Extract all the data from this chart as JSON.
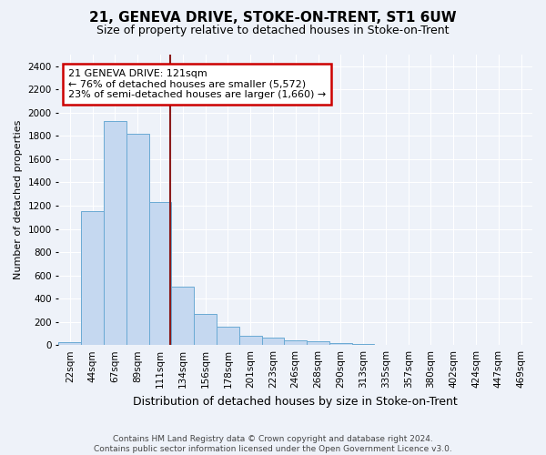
{
  "title": "21, GENEVA DRIVE, STOKE-ON-TRENT, ST1 6UW",
  "subtitle": "Size of property relative to detached houses in Stoke-on-Trent",
  "xlabel": "Distribution of detached houses by size in Stoke-on-Trent",
  "ylabel": "Number of detached properties",
  "categories": [
    "22sqm",
    "44sqm",
    "67sqm",
    "89sqm",
    "111sqm",
    "134sqm",
    "156sqm",
    "178sqm",
    "201sqm",
    "223sqm",
    "246sqm",
    "268sqm",
    "290sqm",
    "313sqm",
    "335sqm",
    "357sqm",
    "380sqm",
    "402sqm",
    "424sqm",
    "447sqm",
    "469sqm"
  ],
  "values": [
    25,
    1150,
    1930,
    1820,
    1230,
    500,
    265,
    155,
    80,
    65,
    40,
    35,
    20,
    10,
    5,
    3,
    2,
    1,
    1,
    0,
    5
  ],
  "bar_color": "#c5d8f0",
  "bar_edge_color": "#6aaad4",
  "vline_color": "#8b1a1a",
  "vline_x_index": 4.43,
  "annotation_text_line1": "21 GENEVA DRIVE: 121sqm",
  "annotation_text_line2": "← 76% of detached houses are smaller (5,572)",
  "annotation_text_line3": "23% of semi-detached houses are larger (1,660) →",
  "annotation_box_facecolor": "#ffffff",
  "annotation_box_edgecolor": "#cc0000",
  "ylim": [
    0,
    2500
  ],
  "yticks": [
    0,
    200,
    400,
    600,
    800,
    1000,
    1200,
    1400,
    1600,
    1800,
    2000,
    2200,
    2400
  ],
  "footer_line1": "Contains HM Land Registry data © Crown copyright and database right 2024.",
  "footer_line2": "Contains public sector information licensed under the Open Government Licence v3.0.",
  "background_color": "#eef2f9",
  "grid_color": "#ffffff",
  "title_fontsize": 11,
  "subtitle_fontsize": 9,
  "ylabel_fontsize": 8,
  "xlabel_fontsize": 9,
  "tick_fontsize": 7.5,
  "annotation_fontsize": 8,
  "footer_fontsize": 6.5
}
